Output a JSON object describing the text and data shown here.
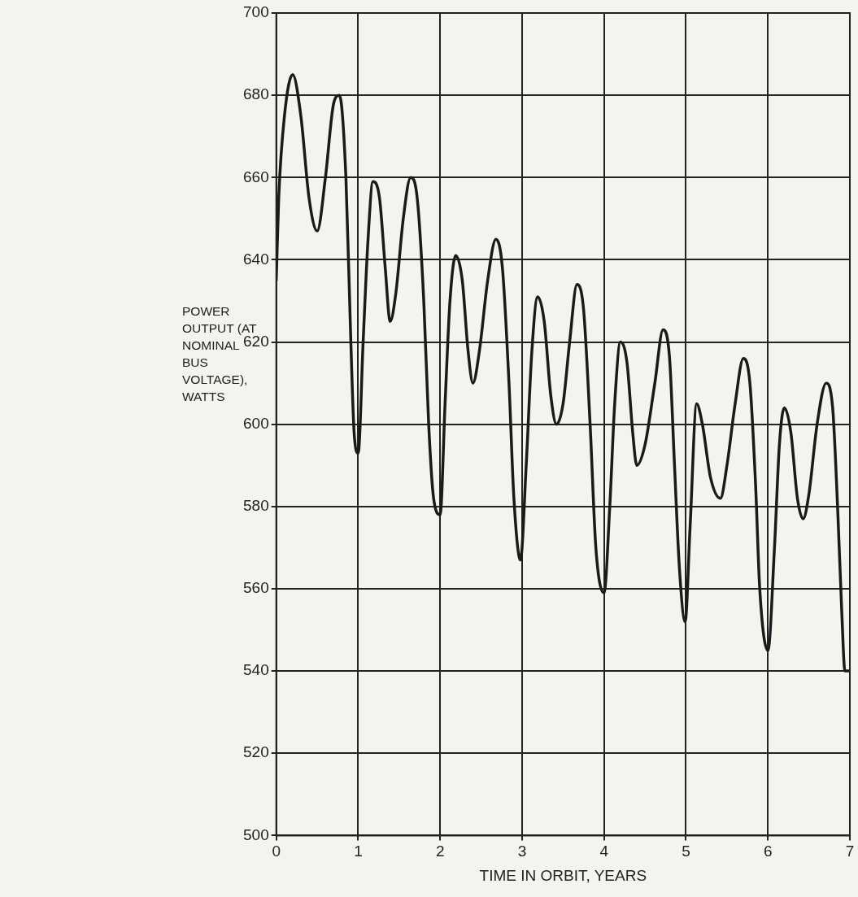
{
  "chart_data": {
    "type": "line",
    "xlabel": "TIME IN ORBIT, YEARS",
    "ylabel": "POWER OUTPUT (AT NOMINAL BUS VOLTAGE), WATTS",
    "series": [
      {
        "color": "#1a1a1a",
        "x": [
          0,
          0.03,
          0.1,
          0.2,
          0.3,
          0.4,
          0.5,
          0.6,
          0.7,
          0.77,
          0.85,
          0.91,
          0.95,
          1.0,
          1.06,
          1.12,
          1.18,
          1.26,
          1.33,
          1.39,
          1.46,
          1.55,
          1.64,
          1.72,
          1.8,
          1.86,
          1.92,
          2.0,
          2.06,
          2.12,
          2.19,
          2.27,
          2.34,
          2.4,
          2.48,
          2.58,
          2.68,
          2.76,
          2.84,
          2.9,
          2.98,
          3.05,
          3.12,
          3.19,
          3.27,
          3.35,
          3.42,
          3.5,
          3.58,
          3.67,
          3.75,
          3.83,
          3.9,
          4.0,
          4.07,
          4.13,
          4.2,
          4.28,
          4.35,
          4.4,
          4.5,
          4.62,
          4.72,
          4.8,
          4.86,
          4.92,
          4.99,
          5.05,
          5.13,
          5.2,
          5.3,
          5.42,
          5.5,
          5.6,
          5.7,
          5.78,
          5.85,
          5.9,
          6.0,
          6.08,
          6.14,
          6.2,
          6.28,
          6.36,
          6.43,
          6.5,
          6.6,
          6.71,
          6.79,
          6.85,
          6.9,
          6.94,
          7.0
        ],
        "values": [
          635,
          655,
          675,
          685,
          675,
          655,
          647,
          660,
          678,
          680,
          660,
          620,
          598,
          593,
          620,
          645,
          659,
          655,
          638,
          625,
          632,
          650,
          660,
          655,
          630,
          600,
          582,
          578,
          605,
          630,
          641,
          635,
          618,
          610,
          618,
          635,
          645,
          638,
          610,
          582,
          567,
          590,
          618,
          631,
          625,
          607,
          600,
          605,
          620,
          634,
          628,
          600,
          570,
          559,
          580,
          605,
          620,
          615,
          598,
          590,
          595,
          610,
          623,
          616,
          590,
          565,
          552,
          575,
          605,
          600,
          587,
          582,
          590,
          605,
          616,
          610,
          585,
          560,
          545,
          570,
          595,
          604,
          598,
          582,
          577,
          583,
          600,
          610,
          604,
          580,
          555,
          540,
          540
        ]
      }
    ],
    "xlim": [
      0,
      7
    ],
    "xticks": [
      0,
      1,
      2,
      3,
      4,
      5,
      6,
      7
    ],
    "ylim": [
      500,
      700
    ],
    "yticks": [
      500,
      520,
      540,
      560,
      580,
      600,
      620,
      640,
      660,
      680,
      700
    ],
    "grid": true,
    "marker": "none",
    "line_style": "solid"
  }
}
